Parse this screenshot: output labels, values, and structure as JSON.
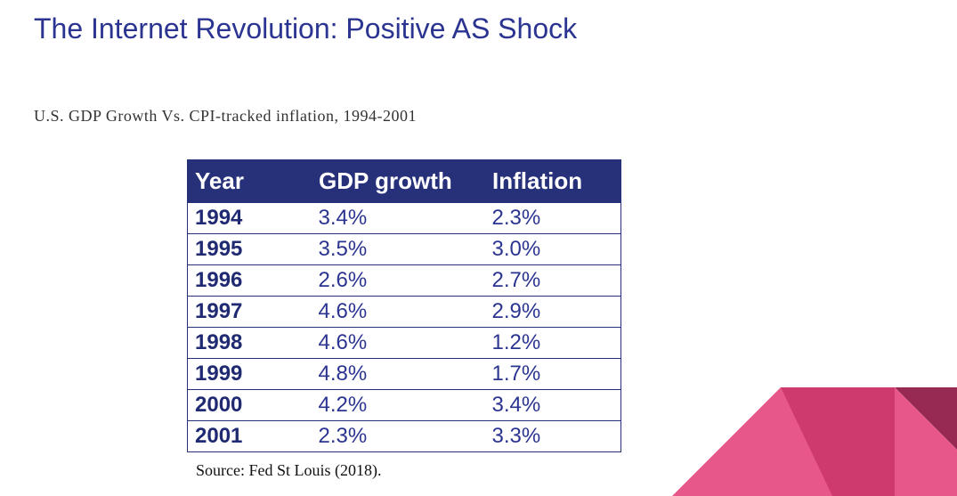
{
  "slide": {
    "title": "The Internet Revolution: Positive AS Shock",
    "subtitle": "U.S. GDP Growth Vs. CPI-tracked inflation, 1994-2001",
    "source": "Source: Fed St Louis (2018)."
  },
  "table": {
    "headers": [
      "Year",
      "GDP growth",
      "Inflation"
    ],
    "rows": [
      [
        "1994",
        "3.4%",
        "2.3%"
      ],
      [
        "1995",
        "3.5%",
        "3.0%"
      ],
      [
        "1996",
        "2.6%",
        "2.7%"
      ],
      [
        "1997",
        "4.6%",
        "2.9%"
      ],
      [
        "1998",
        "4.6%",
        "1.2%"
      ],
      [
        "1999",
        "4.8%",
        "1.7%"
      ],
      [
        "2000",
        "4.2%",
        "3.4%"
      ],
      [
        "2001",
        "2.3%",
        "3.3%"
      ]
    ]
  },
  "colors": {
    "title": "#2b3591",
    "header_bg": "#27317a",
    "accent_pink": "#e8578a",
    "accent_magenta": "#cf3a6e",
    "accent_maroon": "#962a52"
  }
}
